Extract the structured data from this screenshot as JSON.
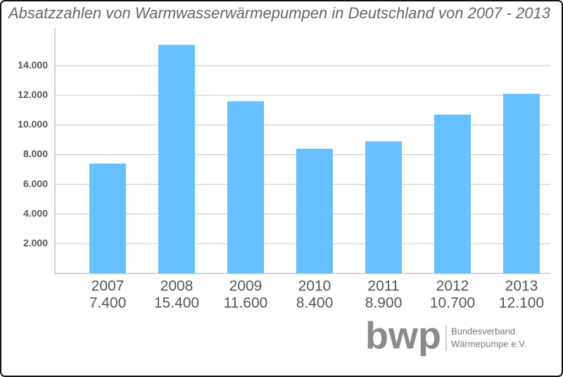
{
  "chart_data": {
    "type": "bar",
    "title": "Absatzzahlen von Warmwasserwärmepumpen in Deutschland von 2007 - 2013",
    "categories": [
      "2007",
      "2008",
      "2009",
      "2010",
      "2011",
      "2012",
      "2013"
    ],
    "values": [
      7400,
      15400,
      11600,
      8400,
      8900,
      10700,
      12100
    ],
    "value_labels": [
      "7.400",
      "15.400",
      "11.600",
      "8.400",
      "8.900",
      "10.700",
      "12.100"
    ],
    "color": "#66bfff",
    "ylim": [
      0,
      16000
    ],
    "yticks": [
      {
        "value": 2000,
        "label": "2.000"
      },
      {
        "value": 4000,
        "label": "4.000"
      },
      {
        "value": 6000,
        "label": "6.000"
      },
      {
        "value": 8000,
        "label": "8.000"
      },
      {
        "value": 10000,
        "label": "10.000"
      },
      {
        "value": 12000,
        "label": "12.000"
      },
      {
        "value": 14000,
        "label": "14.000"
      }
    ],
    "grid": true
  },
  "logo": {
    "mark": "bwp",
    "name_line1": "Bundesverband",
    "name_line2": "Wärmepumpe e.V."
  }
}
